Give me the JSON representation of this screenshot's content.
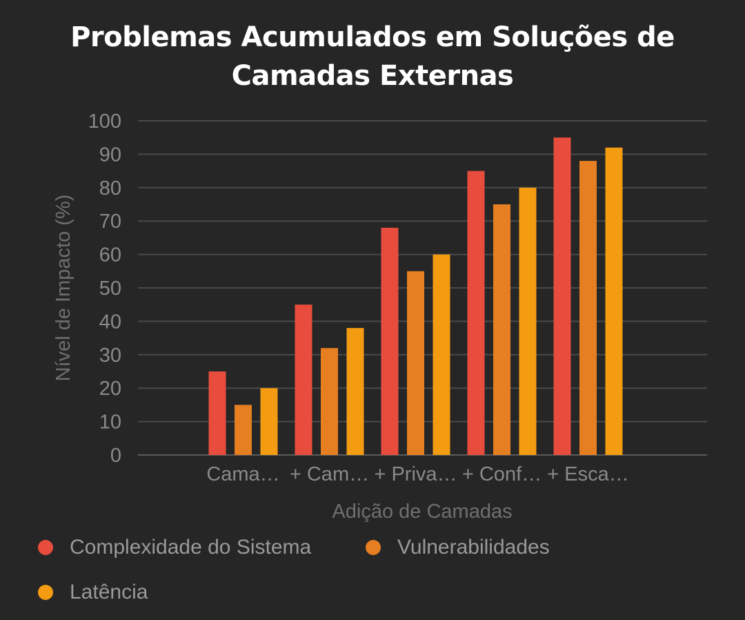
{
  "chart_data": {
    "type": "bar",
    "title": "Problemas Acumulados em Soluções de Camadas Externas",
    "xlabel": "Adição de Camadas",
    "ylabel": "Nível de Impacto (%)",
    "ylim": [
      0,
      100
    ],
    "yticks": [
      "0",
      "10",
      "20",
      "30",
      "40",
      "50",
      "60",
      "70",
      "80",
      "90",
      "100"
    ],
    "categories": [
      "Cama…",
      "+ Cam…",
      "+ Priva…",
      "+ Conf…",
      "+ Esca…"
    ],
    "series": [
      {
        "name": "Complexidade do Sistema",
        "color": "#e84c3d",
        "values": [
          25,
          45,
          68,
          85,
          95
        ]
      },
      {
        "name": "Vulnerabilidades",
        "color": "#e67e22",
        "values": [
          15,
          32,
          55,
          75,
          88
        ]
      },
      {
        "name": "Latência",
        "color": "#f39c12",
        "values": [
          20,
          38,
          60,
          80,
          92
        ]
      }
    ],
    "grid": true,
    "legend_position": "bottom"
  }
}
